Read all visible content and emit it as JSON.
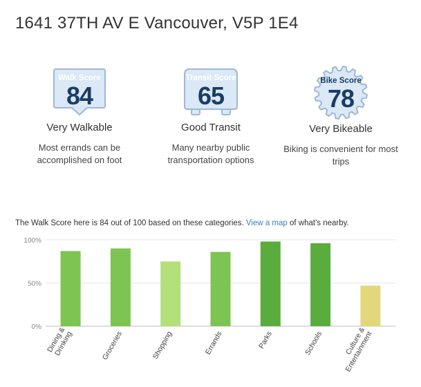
{
  "address": "1641 37TH AV E Vancouver, V5P 1E4",
  "scores": [
    {
      "title": "Walk Score",
      "value": "84",
      "label": "Very Walkable",
      "description_lines": [
        "Most errands can be",
        "accomplished on foot"
      ]
    },
    {
      "title": "Transit Score",
      "value": "65",
      "label": "Good Transit",
      "description_lines": [
        "Many nearby public",
        "transportation options"
      ]
    },
    {
      "title": "Bike Score",
      "value": "78",
      "label": "Very Bikeable",
      "description_lines": [
        "Biking is convenient for most",
        "trips"
      ]
    }
  ],
  "summary": {
    "before_link": "The Walk Score here is 84 out of 100 based on these categories. ",
    "link_text": "View a map",
    "after_link": " of what's nearby."
  },
  "colors": {
    "badge_fill": "#dbe8f5",
    "badge_stroke": "#9db8d6",
    "badge_title": "#ffffff",
    "number": "#1a3d66",
    "link": "#3b7fc4"
  },
  "chart_data": {
    "type": "bar",
    "title": "",
    "xlabel": "",
    "ylabel": "",
    "ylim": [
      0,
      100
    ],
    "yticks": [
      "0%",
      "50%",
      "100%"
    ],
    "grid": true,
    "categories": [
      {
        "label_lines": [
          "Dining &",
          "Drinking"
        ],
        "value": 87,
        "color": "#7dc453"
      },
      {
        "label_lines": [
          "Groceries"
        ],
        "value": 90,
        "color": "#7dc453"
      },
      {
        "label_lines": [
          "Shopping"
        ],
        "value": 75,
        "color": "#b4e07a"
      },
      {
        "label_lines": [
          "Errands"
        ],
        "value": 86,
        "color": "#7dc453"
      },
      {
        "label_lines": [
          "Parks"
        ],
        "value": 98,
        "color": "#5aac3d"
      },
      {
        "label_lines": [
          "Schools"
        ],
        "value": 96,
        "color": "#5aac3d"
      },
      {
        "label_lines": [
          "Culture &",
          "Entertainment"
        ],
        "value": 47,
        "color": "#e3d77b"
      }
    ]
  }
}
